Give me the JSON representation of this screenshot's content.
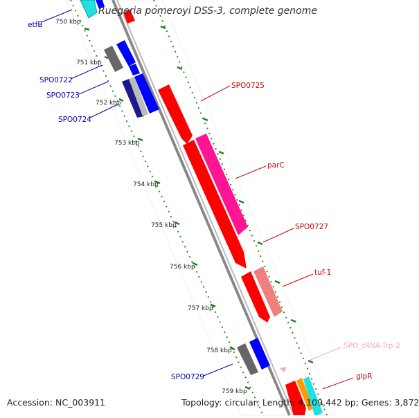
{
  "title": "Ruegeria pomeroyi DSS-3, complete genome",
  "footer": {
    "accession": "Accession: NC_003911",
    "summary": "Topology: circular; Length: 4,109,442 bp; Genes: 3,872"
  },
  "ticks": [
    "750 kbp",
    "751 kbp",
    "752 kbp",
    "753 kbp",
    "754 kbp",
    "755 kbp",
    "756 kbp",
    "757 kbp",
    "758 kbp",
    "759 kbp"
  ],
  "genes": {
    "etfB": "etfB",
    "SPO0722": "SPO0722",
    "SPO0723": "SPO0723",
    "SPO0724": "SPO0724",
    "SPO0725": "SPO0725",
    "parC": "parC",
    "SPO0727": "SPO0727",
    "tuf1": "tuf-1",
    "trna": "SPO_tRNA-Trp-2",
    "SPO0729": "SPO0729",
    "glpR": "glpR"
  },
  "colors": {
    "forward_label": "#cc0000",
    "reverse_label": "#0000aa",
    "trna_label": "#f4a6c8",
    "backbone": "#999999",
    "dots": "#2a8a2a",
    "red": "#ff0000",
    "magenta": "#ff1493",
    "salmon": "#f08080",
    "blue": "#0000ff",
    "gray": "#666666",
    "cyan": "#22e0e0",
    "orange": "#ff9900"
  }
}
